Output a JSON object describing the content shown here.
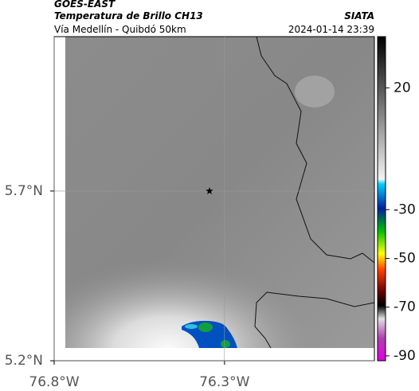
{
  "header": {
    "source": "GOES-EAST",
    "title": "Temperatura de Brillo CH13",
    "credit": "SIATA",
    "subtitle": "Vía Medellín - Quibdó 50km",
    "datetime": "2024-01-14 23:39"
  },
  "map": {
    "xlim": [
      -76.8,
      -75.86
    ],
    "ylim": [
      5.2,
      6.155
    ],
    "xticks": [
      {
        "value": -76.8,
        "label": "76.8°W"
      },
      {
        "value": -76.3,
        "label": "76.3°W"
      }
    ],
    "yticks": [
      {
        "value": 5.2,
        "label": "5.2°N"
      },
      {
        "value": 5.7,
        "label": "5.7°N"
      }
    ],
    "grid": true,
    "marker": {
      "lon": -76.344,
      "lat": 5.7
    }
  },
  "colorbar": {
    "lim": [
      -92,
      41
    ],
    "ticks": [
      20,
      -30,
      -50,
      -70,
      -90
    ]
  }
}
